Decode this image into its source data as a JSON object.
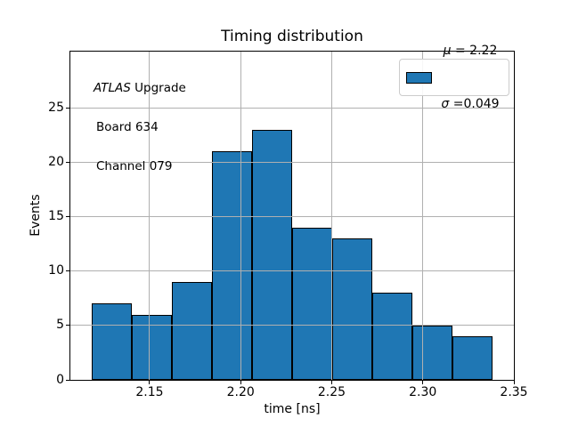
{
  "chart_data": {
    "type": "bar",
    "subtype": "histogram",
    "title": "Timing distribution",
    "xlabel": "time [ns]",
    "ylabel": "Events",
    "bin_edges": [
      2.1183,
      2.1403,
      2.1623,
      2.1843,
      2.2063,
      2.2283,
      2.2503,
      2.2723,
      2.2943,
      2.3163,
      2.3383
    ],
    "counts": [
      7,
      6,
      9,
      21,
      23,
      14,
      13,
      8,
      5,
      4
    ],
    "xlim": [
      2.1065,
      2.35
    ],
    "ylim": [
      0,
      30.2
    ],
    "xticks": [
      2.15,
      2.2,
      2.25,
      2.3,
      2.35
    ],
    "xtick_labels": [
      "2.15",
      "2.20",
      "2.25",
      "2.30",
      "2.35"
    ],
    "yticks": [
      0,
      5,
      10,
      15,
      20,
      25
    ],
    "ytick_labels": [
      "0",
      "5",
      "10",
      "15",
      "20",
      "25"
    ],
    "grid": true,
    "grid_over_bars": true,
    "legend_position": "upper right",
    "colors": {
      "bar_fill": "#1f77b4",
      "bar_edge": "#000000",
      "grid": "#b0b0b0",
      "spine": "#000000",
      "legend_border": "#cccccc",
      "background": "#ffffff"
    },
    "legend": {
      "entries": [
        {
          "swatch_color": "#1f77b4",
          "lines": [
            {
              "symbol": "μ",
              "rest": " = 2.22"
            },
            {
              "symbol": "σ",
              "rest": " =0.049"
            }
          ]
        }
      ]
    },
    "annotation": {
      "line1_italic": "ATLAS",
      "line1_rest": " Upgrade",
      "lines": [
        "Board 634",
        "Channel 079"
      ]
    }
  }
}
